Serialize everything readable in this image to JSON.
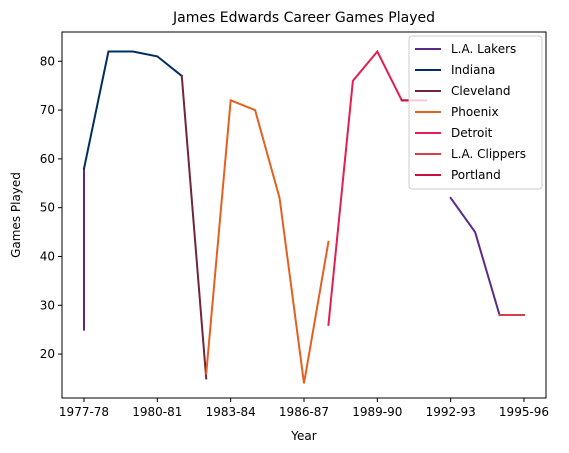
{
  "chart_data": {
    "type": "line",
    "title": "James Edwards  Career Games Played",
    "xlabel": "Year",
    "ylabel": "Games Played",
    "x": [
      "1977-78",
      "1978-79",
      "1979-80",
      "1980-81",
      "1981-82",
      "1982-83",
      "1983-84",
      "1984-85",
      "1985-86",
      "1986-87",
      "1987-88",
      "1988-89",
      "1989-90",
      "1990-91",
      "1991-92",
      "1992-93",
      "1993-94",
      "1994-95",
      "1995-96"
    ],
    "xticks": [
      "1977-78",
      "1980-81",
      "1983-84",
      "1986-87",
      "1989-90",
      "1992-93",
      "1995-96"
    ],
    "xtick_index": [
      0,
      3,
      6,
      9,
      12,
      15,
      18
    ],
    "yticks": [
      20,
      30,
      40,
      50,
      60,
      70,
      80
    ],
    "ylim": [
      11,
      86
    ],
    "xlim": [
      -0.9,
      18.9
    ],
    "grid": false,
    "legend_position": "top-right",
    "series": [
      {
        "name": "L.A. Lakers",
        "color": "#5b2a86",
        "x": [
          0,
          0
        ],
        "y": [
          25,
          58
        ]
      },
      {
        "name": "L.A. Lakers",
        "color": "#5b2a86",
        "x": [
          15,
          16,
          17
        ],
        "y": [
          52,
          45,
          28
        ]
      },
      {
        "name": "Indiana",
        "color": "#002d62",
        "x": [
          0,
          1,
          2,
          3,
          4
        ],
        "y": [
          58,
          82,
          82,
          81,
          77
        ]
      },
      {
        "name": "Cleveland",
        "color": "#6f263d",
        "x": [
          4,
          5
        ],
        "y": [
          77,
          15
        ]
      },
      {
        "name": "Phoenix",
        "color": "#e56020",
        "x": [
          5,
          6,
          7,
          8,
          9,
          10
        ],
        "y": [
          16,
          72,
          70,
          52,
          14,
          43
        ]
      },
      {
        "name": "Detroit",
        "color": "#e31f4f",
        "x": [
          10,
          11,
          12,
          13,
          14
        ],
        "y": [
          26,
          76,
          82,
          72,
          72
        ]
      },
      {
        "name": "L.A. Clippers",
        "color": "#d1404b",
        "x": [
          17,
          18
        ],
        "y": [
          28,
          28
        ]
      },
      {
        "name": "Portland",
        "color": "#c8103e",
        "x": [
          13,
          14
        ],
        "y": [
          72,
          72
        ]
      }
    ],
    "legend": [
      {
        "label": "L.A. Lakers",
        "color": "#5b2a86"
      },
      {
        "label": "Indiana",
        "color": "#002d62"
      },
      {
        "label": "Cleveland",
        "color": "#6f263d"
      },
      {
        "label": "Phoenix",
        "color": "#e56020"
      },
      {
        "label": "Detroit",
        "color": "#e31f4f"
      },
      {
        "label": "L.A. Clippers",
        "color": "#d1404b"
      },
      {
        "label": "Portland",
        "color": "#c8103e"
      }
    ]
  }
}
